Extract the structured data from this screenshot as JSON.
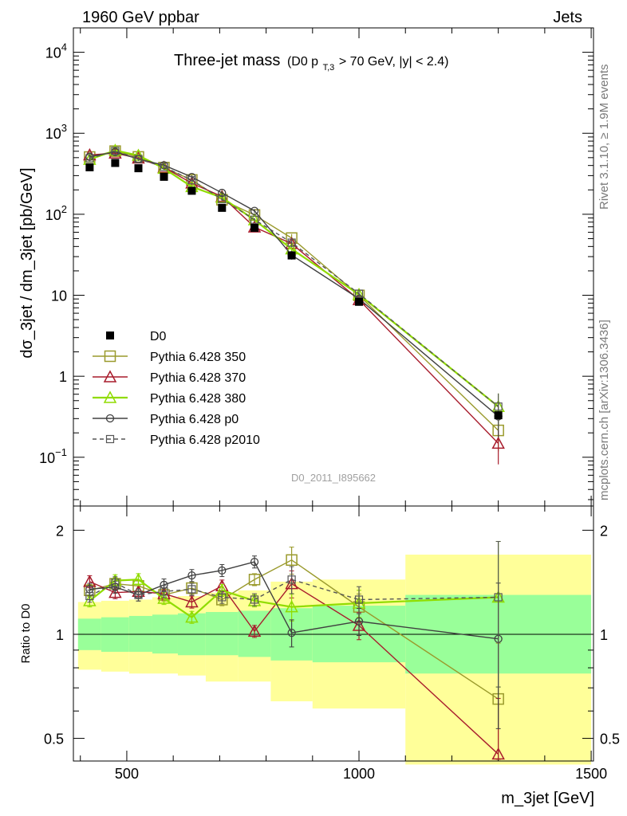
{
  "header": {
    "left": "1960 GeV ppbar",
    "right": "Jets"
  },
  "side": {
    "rivet": "Rivet 3.1.10, ≥ 1.9M events",
    "mcplots": "mcplots.cern.ch [arXiv:1306.3436]"
  },
  "watermark": "D0_2011_I895662",
  "chart_data": {
    "type": "line",
    "title": "Three-jet mass",
    "title_sub_parts": {
      "pre": "(D0 p",
      "sub": "T,3",
      "post": " > 70 GeV, |y| < 2.4)"
    },
    "xlabel": "m_3jet [GeV]",
    "ylabel": "dσ_3jet / dm_3jet [pb/GeV]",
    "ratio_ylabel": "Ratio to D0",
    "xlim": [
      385,
      1505
    ],
    "ylim": [
      0.025,
      20000
    ],
    "yscale": "log",
    "ratio_ylim": [
      0.43,
      2.35
    ],
    "xticks": [
      500,
      1000,
      1500
    ],
    "yticks": [
      {
        "v": 10000,
        "b": "10",
        "e": "4"
      },
      {
        "v": 1000,
        "b": "10",
        "e": "3"
      },
      {
        "v": 100,
        "b": "10",
        "e": "2"
      },
      {
        "v": 10,
        "b": "10",
        "e": ""
      },
      {
        "v": 1,
        "b": "1",
        "e": ""
      },
      {
        "v": 0.1,
        "b": "10",
        "e": "−1"
      }
    ],
    "ratio_yticks": [
      {
        "v": 0.5,
        "l": "0.5"
      },
      {
        "v": 1,
        "l": "1"
      },
      {
        "v": 2,
        "l": "2"
      }
    ],
    "x": [
      420,
      475,
      525,
      580,
      640,
      705,
      775,
      855,
      1000,
      1300
    ],
    "bins": [
      [
        395,
        445
      ],
      [
        445,
        505
      ],
      [
        505,
        555
      ],
      [
        555,
        610
      ],
      [
        610,
        670
      ],
      [
        670,
        740
      ],
      [
        740,
        810
      ],
      [
        810,
        900
      ],
      [
        900,
        1100
      ],
      [
        1100,
        1500
      ]
    ],
    "data": {
      "name": "D0",
      "y": [
        380,
        430,
        370,
        290,
        195,
        120,
        68,
        31,
        8.3,
        0.33
      ]
    },
    "band_inner": [
      [
        0.9,
        1.11
      ],
      [
        0.89,
        1.12
      ],
      [
        0.89,
        1.13
      ],
      [
        0.88,
        1.14
      ],
      [
        0.87,
        1.15
      ],
      [
        0.87,
        1.16
      ],
      [
        0.86,
        1.17
      ],
      [
        0.84,
        1.19
      ],
      [
        0.83,
        1.21
      ],
      [
        0.77,
        1.3
      ]
    ],
    "band_outer": [
      [
        0.79,
        1.24
      ],
      [
        0.78,
        1.25
      ],
      [
        0.77,
        1.26
      ],
      [
        0.77,
        1.28
      ],
      [
        0.76,
        1.29
      ],
      [
        0.73,
        1.32
      ],
      [
        0.73,
        1.34
      ],
      [
        0.64,
        1.42
      ],
      [
        0.61,
        1.44
      ],
      [
        0.42,
        1.7
      ]
    ],
    "series": [
      {
        "name": "Pythia 6.428 350",
        "color": "#9a9a2c",
        "marker": "square",
        "dash": "",
        "ratio": [
          1.34,
          1.4,
          1.38,
          1.3,
          1.36,
          1.26,
          1.44,
          1.64,
          1.2,
          0.65
        ]
      },
      {
        "name": "Pythia 6.428 370",
        "color": "#a81c2c",
        "marker": "triangle",
        "dash": "",
        "ratio": [
          1.42,
          1.32,
          1.33,
          1.31,
          1.24,
          1.38,
          1.02,
          1.4,
          1.06,
          0.45
        ]
      },
      {
        "name": "Pythia 6.428 380",
        "color": "#90dc00",
        "marker": "triangle",
        "dash": "",
        "ratio": [
          1.25,
          1.43,
          1.44,
          1.27,
          1.12,
          1.34,
          1.25,
          1.2,
          1.23,
          1.28
        ]
      },
      {
        "name": "Pythia 6.428 p0",
        "color": "#404040",
        "marker": "circle",
        "dash": "",
        "ratio": [
          1.35,
          1.37,
          1.3,
          1.39,
          1.48,
          1.53,
          1.62,
          1.01,
          1.09,
          0.97
        ]
      },
      {
        "name": "Pythia 6.428 p2010",
        "color": "#555555",
        "marker": "squaresmall",
        "dash": "5,4",
        "ratio": [
          1.29,
          1.41,
          1.3,
          1.33,
          1.35,
          1.28,
          1.26,
          1.44,
          1.26,
          1.28
        ]
      }
    ],
    "legend_position": "bottom-left"
  }
}
